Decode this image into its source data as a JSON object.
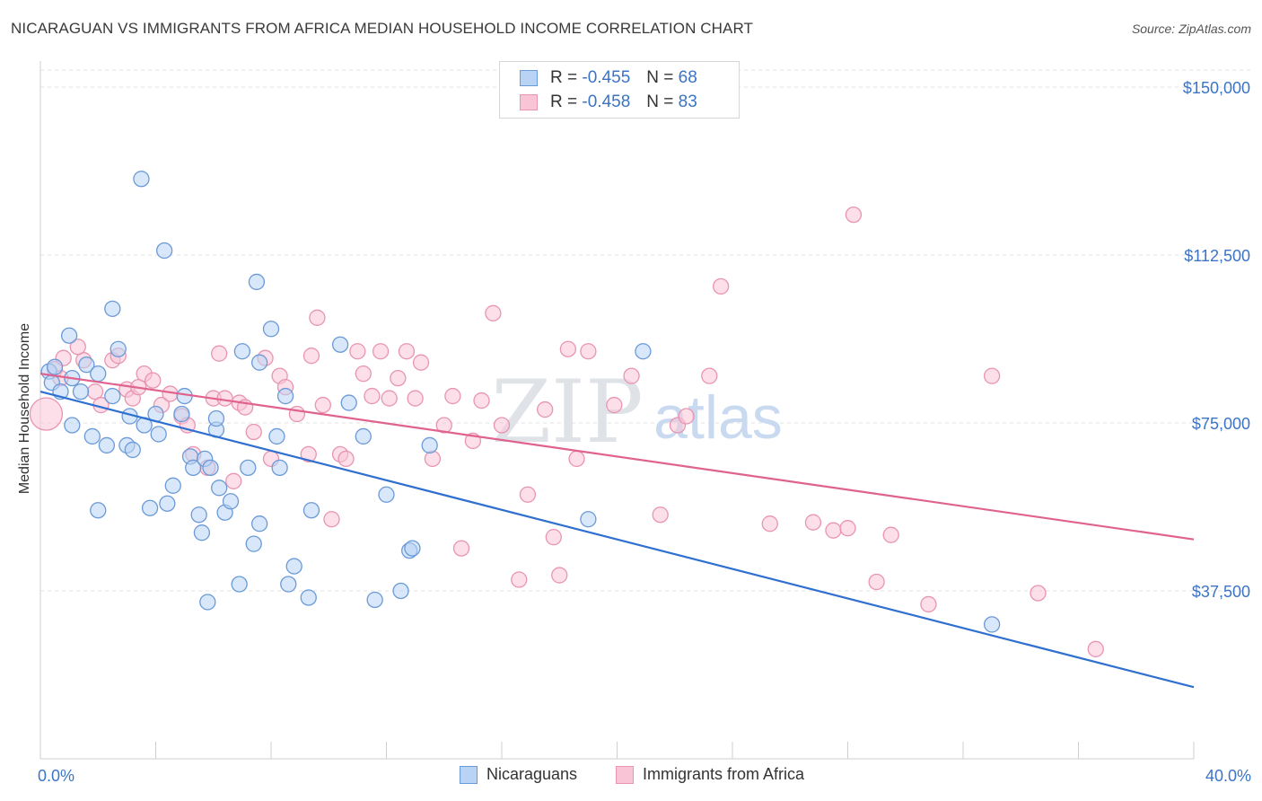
{
  "header": {
    "title": "NICARAGUAN VS IMMIGRANTS FROM AFRICA MEDIAN HOUSEHOLD INCOME CORRELATION CHART",
    "source": "Source: ZipAtlas.com"
  },
  "watermark": {
    "zip": "ZIP",
    "atlas": "atlas"
  },
  "colors": {
    "blue_fill": "#b8d3f4",
    "blue_stroke": "#6b9ad8",
    "blue_line": "#2f6fd0",
    "pink_fill": "#f9c5d6",
    "pink_stroke": "#e895b2",
    "pink_line": "#e0628e",
    "tick_label": "#3b74c6"
  },
  "legend": {
    "rows": [
      {
        "r_label": "R =",
        "r_value": "-0.455",
        "n_label": "N =",
        "n_value": "68"
      },
      {
        "r_label": "R =",
        "r_value": "-0.458",
        "n_label": "N =",
        "n_value": "83"
      }
    ]
  },
  "bottom_legend": {
    "items": [
      {
        "label": "Nicaraguans"
      },
      {
        "label": "Immigrants from Africa"
      }
    ]
  },
  "chart_data": {
    "type": "scatter",
    "ylabel": "Median Household Income",
    "xlim": [
      0,
      40
    ],
    "ylim": [
      0,
      155000
    ],
    "x_tick_labels": [
      "0.0%",
      "40.0%"
    ],
    "y_ticks": [
      37500,
      75000,
      112500,
      150000
    ],
    "y_tick_labels": [
      "$37,500",
      "$75,000",
      "$112,500",
      "$150,000"
    ],
    "grid": true,
    "series": [
      {
        "name": "Nicaraguans",
        "trend": {
          "x": [
            0,
            40
          ],
          "y": [
            82000,
            16000
          ]
        },
        "points": [
          [
            0.3,
            86500
          ],
          [
            0.5,
            87500
          ],
          [
            0.4,
            84000
          ],
          [
            0.7,
            82000
          ],
          [
            1.1,
            85000
          ],
          [
            1.4,
            82000
          ],
          [
            1.6,
            88000
          ],
          [
            2.0,
            86000
          ],
          [
            1.0,
            94500
          ],
          [
            2.5,
            100500
          ],
          [
            2.7,
            91500
          ],
          [
            3.5,
            129500
          ],
          [
            4.3,
            113500
          ],
          [
            1.1,
            74500
          ],
          [
            1.8,
            72000
          ],
          [
            2.3,
            70000
          ],
          [
            3.0,
            70000
          ],
          [
            3.2,
            69000
          ],
          [
            2.5,
            81000
          ],
          [
            3.1,
            76500
          ],
          [
            3.6,
            74500
          ],
          [
            4.0,
            77000
          ],
          [
            4.1,
            72500
          ],
          [
            4.4,
            57000
          ],
          [
            3.8,
            56000
          ],
          [
            4.6,
            61000
          ],
          [
            4.9,
            77000
          ],
          [
            5.0,
            81000
          ],
          [
            5.2,
            67500
          ],
          [
            5.3,
            65000
          ],
          [
            5.7,
            67000
          ],
          [
            5.9,
            65000
          ],
          [
            5.5,
            54500
          ],
          [
            5.6,
            50500
          ],
          [
            6.2,
            60500
          ],
          [
            6.4,
            55000
          ],
          [
            6.6,
            57500
          ],
          [
            6.1,
            73500
          ],
          [
            6.1,
            76000
          ],
          [
            7.0,
            91000
          ],
          [
            7.2,
            65000
          ],
          [
            7.6,
            88500
          ],
          [
            7.5,
            106500
          ],
          [
            7.6,
            52500
          ],
          [
            7.4,
            48000
          ],
          [
            8.2,
            72000
          ],
          [
            8.3,
            65000
          ],
          [
            8.5,
            81000
          ],
          [
            8.0,
            96000
          ],
          [
            8.6,
            39000
          ],
          [
            8.8,
            43000
          ],
          [
            9.3,
            36000
          ],
          [
            9.4,
            55500
          ],
          [
            10.4,
            92500
          ],
          [
            10.7,
            79500
          ],
          [
            11.2,
            72000
          ],
          [
            11.6,
            35500
          ],
          [
            12.0,
            59000
          ],
          [
            12.5,
            37500
          ],
          [
            12.8,
            46500
          ],
          [
            12.9,
            47000
          ],
          [
            13.5,
            70000
          ],
          [
            6.9,
            39000
          ],
          [
            19.0,
            53500
          ],
          [
            20.9,
            91000
          ],
          [
            33.0,
            30000
          ],
          [
            5.8,
            35000
          ],
          [
            2.0,
            55500
          ]
        ]
      },
      {
        "name": "Immigrants from Africa",
        "trend": {
          "x": [
            0,
            40
          ],
          "y": [
            86000,
            49000
          ]
        },
        "points": [
          [
            0.2,
            77000
          ],
          [
            0.5,
            87000
          ],
          [
            0.7,
            85000
          ],
          [
            0.8,
            89500
          ],
          [
            1.5,
            89000
          ],
          [
            1.9,
            82000
          ],
          [
            2.1,
            79000
          ],
          [
            2.5,
            89000
          ],
          [
            2.7,
            90000
          ],
          [
            3.0,
            82500
          ],
          [
            3.2,
            80500
          ],
          [
            3.4,
            83000
          ],
          [
            3.6,
            86000
          ],
          [
            3.9,
            84500
          ],
          [
            4.2,
            79000
          ],
          [
            4.5,
            81500
          ],
          [
            4.9,
            76500
          ],
          [
            5.1,
            74500
          ],
          [
            5.3,
            68000
          ],
          [
            5.8,
            65000
          ],
          [
            6.0,
            80500
          ],
          [
            6.2,
            90500
          ],
          [
            6.4,
            80500
          ],
          [
            6.7,
            62000
          ],
          [
            6.9,
            79500
          ],
          [
            7.1,
            78500
          ],
          [
            7.4,
            73000
          ],
          [
            7.8,
            89500
          ],
          [
            8.0,
            67000
          ],
          [
            8.3,
            85500
          ],
          [
            8.5,
            83000
          ],
          [
            8.9,
            77000
          ],
          [
            9.3,
            68000
          ],
          [
            9.4,
            90000
          ],
          [
            9.8,
            79000
          ],
          [
            10.1,
            53500
          ],
          [
            10.4,
            68000
          ],
          [
            10.6,
            67000
          ],
          [
            11.0,
            91000
          ],
          [
            11.2,
            86000
          ],
          [
            11.5,
            81000
          ],
          [
            11.8,
            91000
          ],
          [
            12.1,
            80500
          ],
          [
            12.4,
            85000
          ],
          [
            12.7,
            91000
          ],
          [
            13.0,
            80500
          ],
          [
            13.2,
            88500
          ],
          [
            13.6,
            67000
          ],
          [
            14.0,
            74500
          ],
          [
            14.3,
            81000
          ],
          [
            14.6,
            47000
          ],
          [
            15.0,
            71000
          ],
          [
            15.3,
            80000
          ],
          [
            15.7,
            99500
          ],
          [
            16.0,
            74500
          ],
          [
            16.6,
            40000
          ],
          [
            16.9,
            59000
          ],
          [
            17.5,
            78000
          ],
          [
            17.8,
            49500
          ],
          [
            18.0,
            41000
          ],
          [
            18.3,
            91500
          ],
          [
            18.6,
            67000
          ],
          [
            19.0,
            91000
          ],
          [
            19.9,
            79000
          ],
          [
            20.5,
            85500
          ],
          [
            21.5,
            54500
          ],
          [
            22.1,
            74500
          ],
          [
            22.4,
            76500
          ],
          [
            23.2,
            85500
          ],
          [
            23.6,
            105500
          ],
          [
            25.3,
            52500
          ],
          [
            26.8,
            52800
          ],
          [
            27.5,
            51000
          ],
          [
            28.0,
            51500
          ],
          [
            28.2,
            121500
          ],
          [
            29.5,
            50000
          ],
          [
            29.0,
            39500
          ],
          [
            30.8,
            34500
          ],
          [
            33.0,
            85500
          ],
          [
            34.6,
            37000
          ],
          [
            36.6,
            24500
          ],
          [
            1.3,
            92000
          ],
          [
            9.6,
            98500
          ]
        ]
      }
    ]
  }
}
